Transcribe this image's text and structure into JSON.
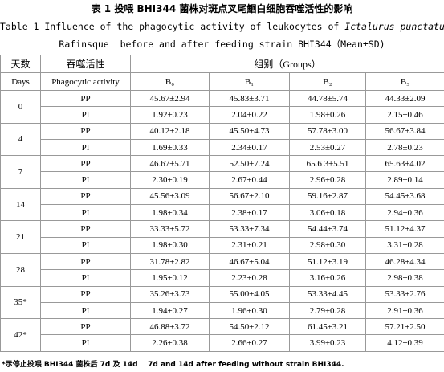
{
  "title": {
    "line1": "表 1 投喂 BHI344 菌株对斑点叉尾鮰白细胞吞噬活性的影响",
    "line2": "Table 1 Influence of the phagocytic activity of leukocytes of ",
    "line2_italic": "Ictalurus punctatus",
    "line3": "Rafinsque  before and after feeding strain BHI344（Mean±SD)"
  },
  "header": {
    "days_cn": "天数",
    "activity_cn": "吞噬活性",
    "groups": "组别（Groups）",
    "days_en": "Days",
    "activity_en": "Phagocytic activity",
    "columns": [
      "B₀",
      "B₁",
      "B₂",
      "B₃"
    ]
  },
  "table": {
    "rows": [
      {
        "day": "0",
        "items": [
          {
            "activity": "PP",
            "values": [
              "45.67±2.94",
              "45.83±3.71",
              "44.78±5.74",
              "44.33±2.09"
            ]
          },
          {
            "activity": "PI",
            "values": [
              "1.92±0.23",
              "2.04±0.22",
              "1.98±0.26",
              "2.15±0.46"
            ]
          }
        ]
      },
      {
        "day": "4",
        "items": [
          {
            "activity": "PP",
            "values": [
              "40.12±2.18",
              "45.50±4.73",
              "57.78±3.00",
              "56.67±3.84"
            ]
          },
          {
            "activity": "PI",
            "values": [
              "1.69±0.33",
              "2.34±0.17",
              "2.53±0.27",
              "2.78±0.23"
            ]
          }
        ]
      },
      {
        "day": "7",
        "items": [
          {
            "activity": "PP",
            "values": [
              "46.67±5.71",
              "52.50±7.24",
              "65.6 3±5.51",
              "65.63±4.02"
            ]
          },
          {
            "activity": "PI",
            "values": [
              "2.30±0.19",
              "2.67±0.44",
              "2.96±0.28",
              "2.89±0.14"
            ]
          }
        ]
      },
      {
        "day": "14",
        "items": [
          {
            "activity": "PP",
            "values": [
              "45.56±3.09",
              "56.67±2.10",
              "59.16±2.87",
              "54.45±3.68"
            ]
          },
          {
            "activity": "PI",
            "values": [
              "1.98±0.34",
              "2.38±0.17",
              "3.06±0.18",
              "2.94±0.36"
            ]
          }
        ]
      },
      {
        "day": "21",
        "items": [
          {
            "activity": "PP",
            "values": [
              "33.33±5.72",
              "53.33±7.34",
              "54.44±3.74",
              "51.12±4.37"
            ]
          },
          {
            "activity": "PI",
            "values": [
              "1.98±0.30",
              "2.31±0.21",
              "2.98±0.30",
              "3.31±0.28"
            ]
          }
        ]
      },
      {
        "day": "28",
        "items": [
          {
            "activity": "PP",
            "values": [
              "31.78±2.82",
              "46.67±5.04",
              "51.12±3.19",
              "46.28±4.34"
            ]
          },
          {
            "activity": "PI",
            "values": [
              "1.95±0.12",
              "2.23±0.28",
              "3.16±0.26",
              "2.98±0.38"
            ]
          }
        ]
      },
      {
        "day": "35*",
        "items": [
          {
            "activity": "PP",
            "values": [
              "35.26±3.73",
              "55.00±4.05",
              "53.33±4.45",
              "53.33±2.76"
            ]
          },
          {
            "activity": "PI",
            "values": [
              "1.94±0.27",
              "1.96±0.30",
              "2.79±0.28",
              "2.91±0.36"
            ]
          }
        ]
      },
      {
        "day": "42*",
        "items": [
          {
            "activity": "PP",
            "values": [
              "46.88±3.72",
              "54.50±2.12",
              "61.45±3.21",
              "57.21±2.50"
            ]
          },
          {
            "activity": "PI",
            "values": [
              "2.26±0.38",
              "2.66±0.27",
              "3.99±0.23",
              "4.12±0.39"
            ]
          }
        ]
      }
    ]
  },
  "footnote": "*示停止投喂 BHI344 菌株后 7d 及 14d    7d and 14d after feeding without strain BHI344."
}
